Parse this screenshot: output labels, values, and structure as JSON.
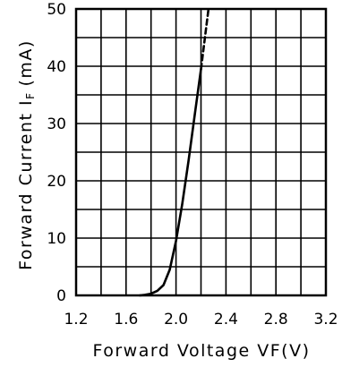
{
  "chart_data": {
    "type": "line",
    "xlabel": "Forward Voltage VF(V)",
    "ylabel_main": "Forward Current I",
    "ylabel_subscript": "F",
    "ylabel_unit": "(mA)",
    "xlim": [
      1.2,
      3.2
    ],
    "ylim": [
      0,
      50
    ],
    "x_ticks": [
      "1.2",
      "1.6",
      "2.0",
      "2.4",
      "2.8",
      "3.2"
    ],
    "y_ticks": [
      "0",
      "10",
      "20",
      "30",
      "40",
      "50"
    ],
    "grid": true,
    "x_gridlines": 10,
    "y_gridlines": 10,
    "series": [
      {
        "style": "solid",
        "x": [
          1.71,
          1.75,
          1.8,
          1.85,
          1.9,
          1.95,
          2.0,
          2.05,
          2.1,
          2.15,
          2.2
        ],
        "y": [
          0.0,
          0.1,
          0.3,
          0.8,
          1.8,
          4.5,
          9.5,
          16.0,
          23.5,
          31.5,
          39.5
        ]
      },
      {
        "style": "dashed",
        "x": [
          2.2,
          2.22,
          2.24,
          2.26
        ],
        "y": [
          39.5,
          43.0,
          46.5,
          50.0
        ]
      }
    ]
  }
}
